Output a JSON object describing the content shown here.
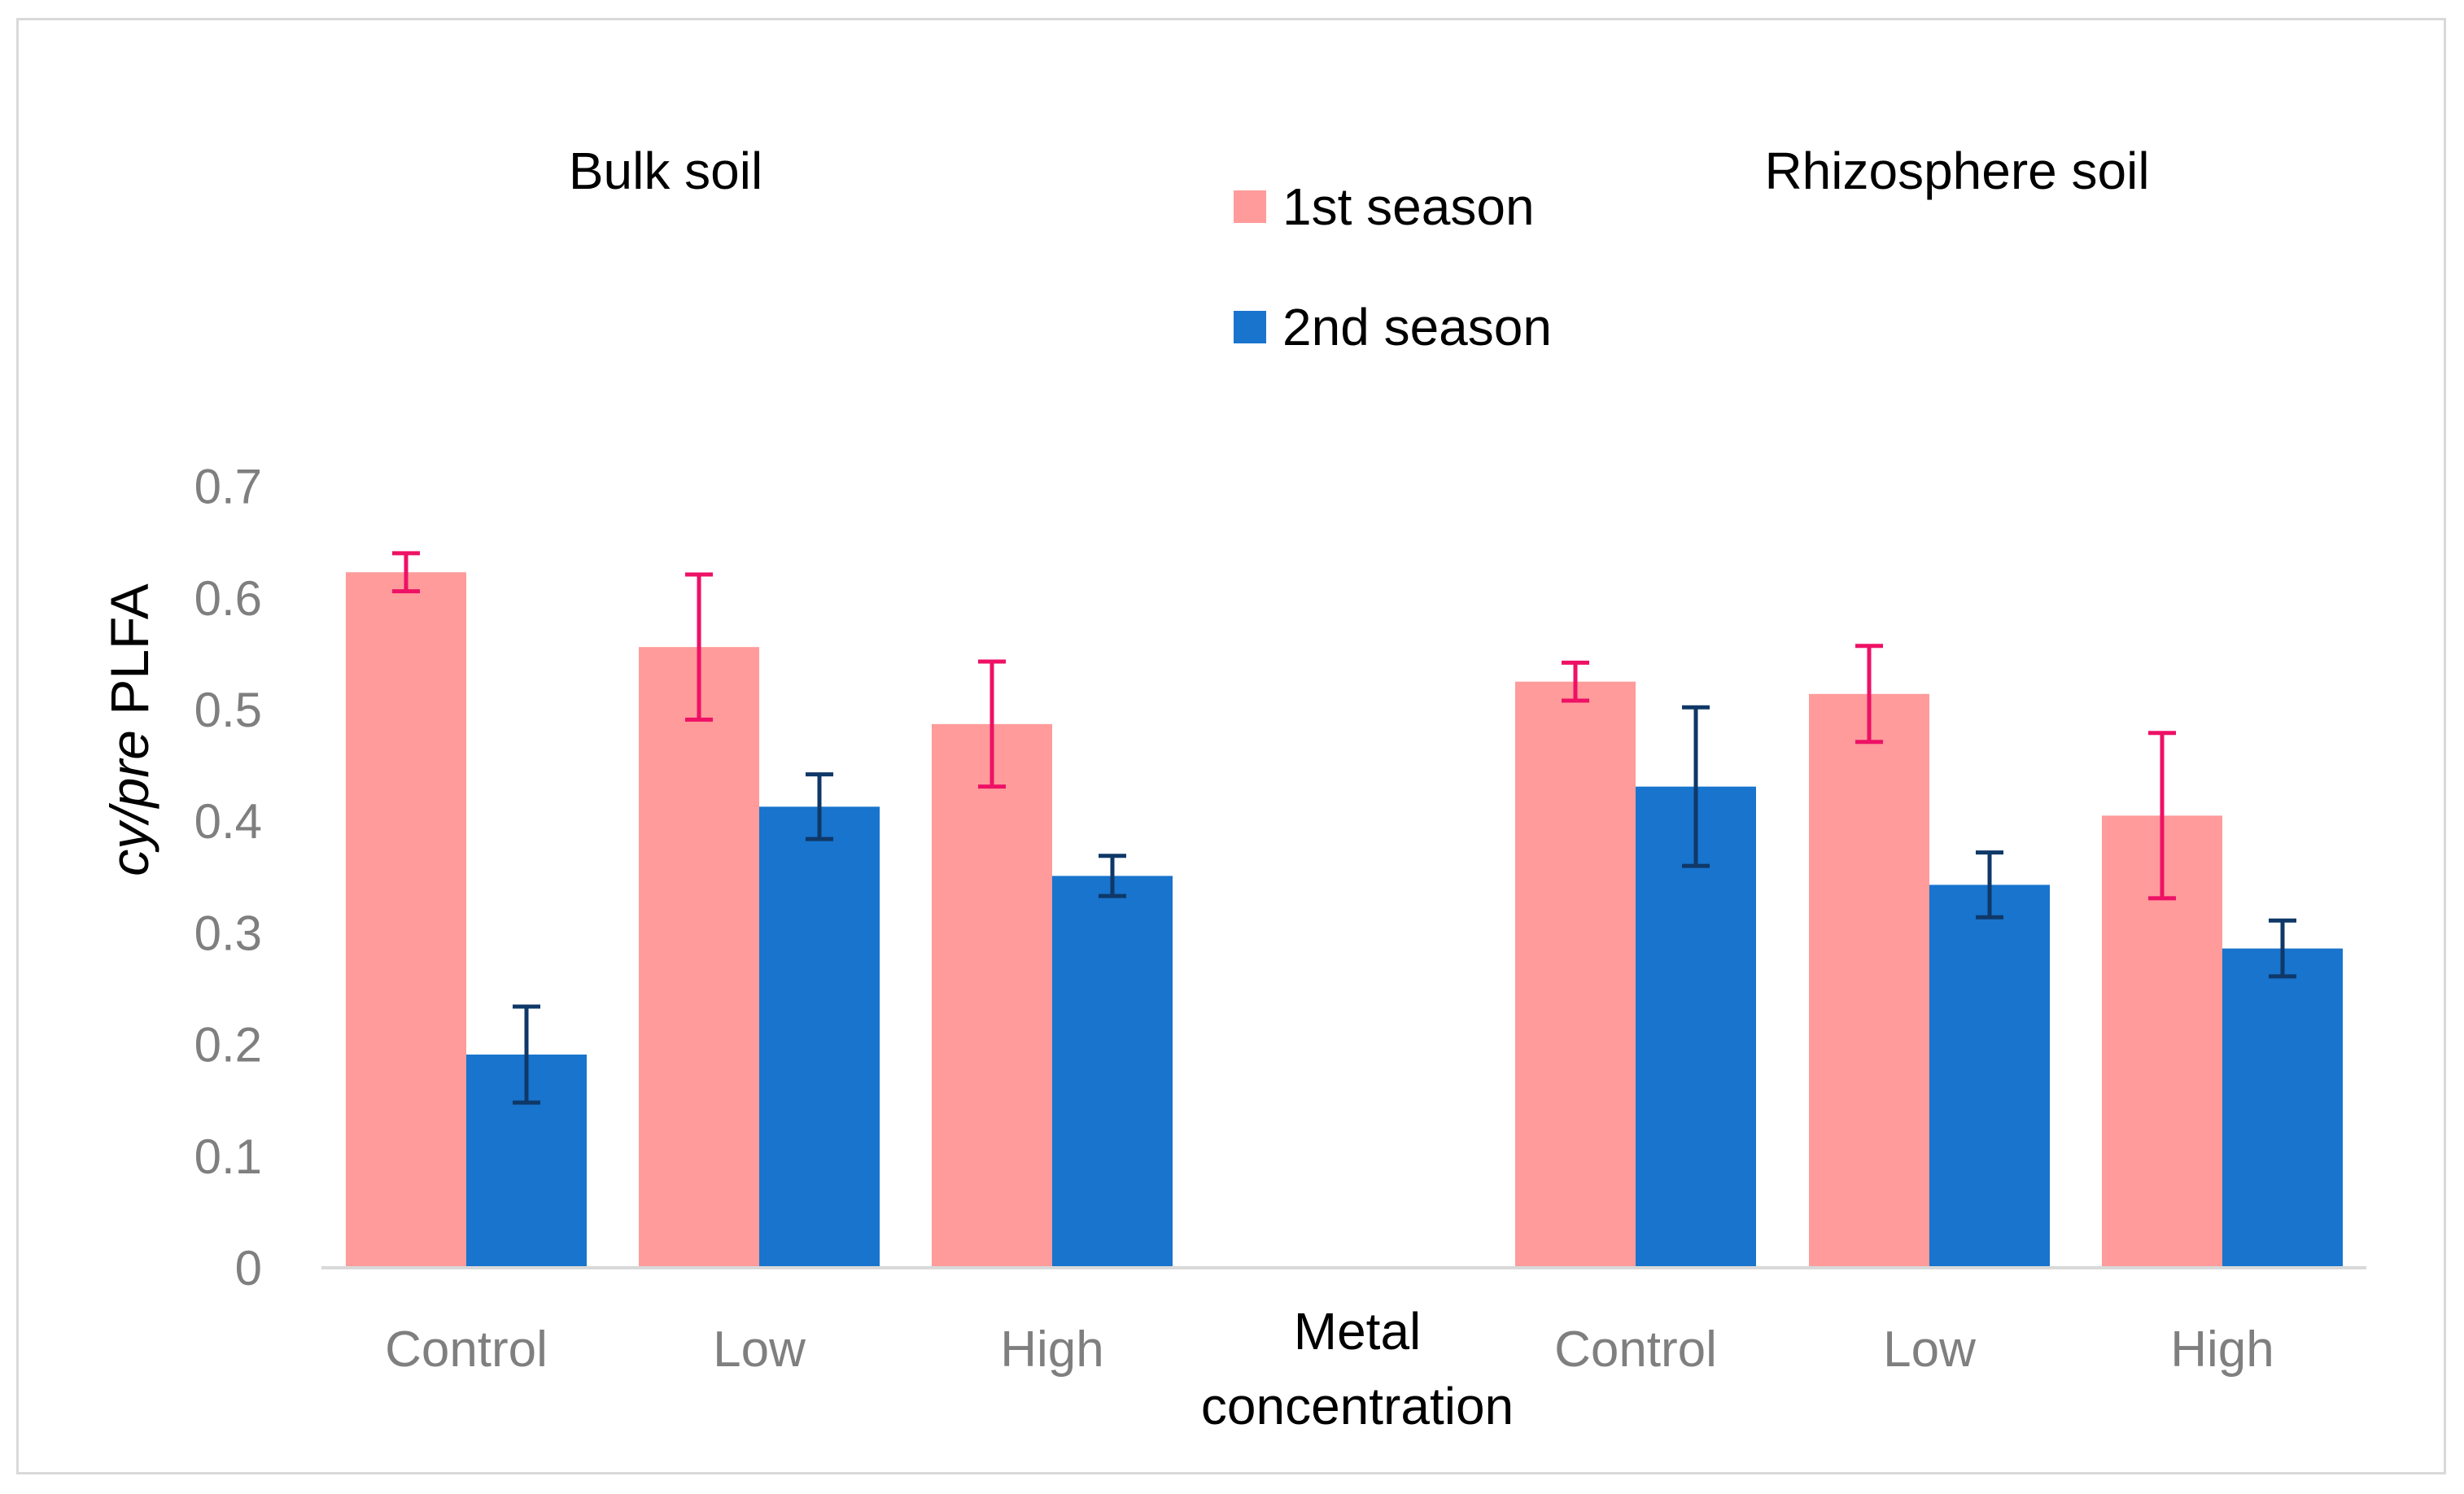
{
  "chart_data": {
    "type": "bar",
    "ylabel": {
      "italic": "cy/pre",
      "normal": " PLFA"
    },
    "xlabel": [
      "Metal",
      "concentration"
    ],
    "ylim": [
      0,
      0.7
    ],
    "yticks": [
      "0",
      "0.1",
      "0.2",
      "0.3",
      "0.4",
      "0.5",
      "0.6",
      "0.7"
    ],
    "yticks_values": [
      0,
      0.1,
      0.2,
      0.3,
      0.4,
      0.5,
      0.6,
      0.7
    ],
    "groups": [
      {
        "title": "Bulk soil",
        "categories": [
          "Control",
          "Low",
          "High"
        ]
      },
      {
        "title": "Rhizosphere soil",
        "categories": [
          "Control",
          "Low",
          "High"
        ]
      }
    ],
    "series": [
      {
        "name": "1st season",
        "color": "#ff9b9b",
        "error_color": "#ee1166",
        "values": [
          0.623,
          0.556,
          0.487,
          0.525,
          0.514,
          0.405
        ],
        "errors": [
          0.017,
          0.065,
          0.056,
          0.017,
          0.043,
          0.074
        ]
      },
      {
        "name": "2nd season",
        "color": "#1874cd",
        "error_color": "#0f3868",
        "values": [
          0.191,
          0.413,
          0.351,
          0.431,
          0.343,
          0.286
        ],
        "errors": [
          0.043,
          0.029,
          0.018,
          0.071,
          0.029,
          0.025
        ]
      }
    ],
    "axis_color": "#d9d9d9",
    "grid": false,
    "legend_position": "top-center"
  }
}
